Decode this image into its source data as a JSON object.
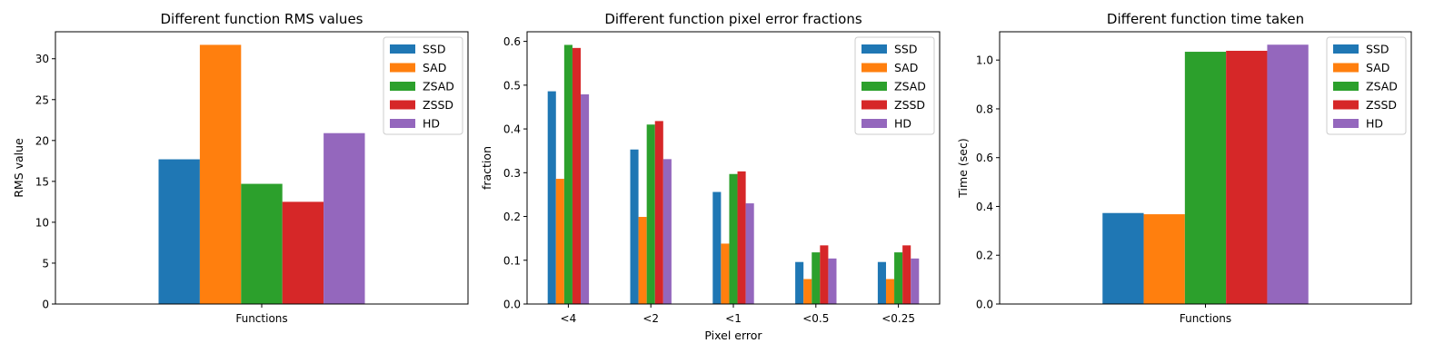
{
  "colors": {
    "SSD": "#1f77b4",
    "SAD": "#ff7f0e",
    "ZSAD": "#2ca02c",
    "ZSSD": "#d62728",
    "HD": "#9467bd"
  },
  "chart_data": [
    {
      "type": "bar",
      "title": "Different function RMS values",
      "xlabel": "",
      "ylabel": "RMS value",
      "categories": [
        "Functions"
      ],
      "series": [
        {
          "name": "SSD",
          "values": [
            17.7
          ]
        },
        {
          "name": "SAD",
          "values": [
            31.7
          ]
        },
        {
          "name": "ZSAD",
          "values": [
            14.7
          ]
        },
        {
          "name": "ZSSD",
          "values": [
            12.5
          ]
        },
        {
          "name": "HD",
          "values": [
            20.9
          ]
        }
      ],
      "ylim": [
        0,
        33.3
      ],
      "yticks": [
        0,
        5,
        10,
        15,
        20,
        25,
        30
      ],
      "legend": "top-right",
      "grid": false
    },
    {
      "type": "bar",
      "title": "Different function pixel error fractions",
      "xlabel": "Pixel error",
      "ylabel": "fraction",
      "categories": [
        "<4",
        "<2",
        "<1",
        "<0.5",
        "<0.25"
      ],
      "series": [
        {
          "name": "SSD",
          "values": [
            0.486,
            0.353,
            0.256,
            0.096,
            0.096
          ]
        },
        {
          "name": "SAD",
          "values": [
            0.286,
            0.199,
            0.138,
            0.057,
            0.057
          ]
        },
        {
          "name": "ZSAD",
          "values": [
            0.592,
            0.41,
            0.297,
            0.118,
            0.118
          ]
        },
        {
          "name": "ZSSD",
          "values": [
            0.585,
            0.418,
            0.303,
            0.134,
            0.134
          ]
        },
        {
          "name": "HD",
          "values": [
            0.479,
            0.331,
            0.23,
            0.104,
            0.104
          ]
        }
      ],
      "ylim": [
        0,
        0.622
      ],
      "yticks": [
        "0.0",
        "0.1",
        "0.2",
        "0.3",
        "0.4",
        "0.5",
        "0.6"
      ],
      "legend": "top-right",
      "grid": false
    },
    {
      "type": "bar",
      "title": "Different function time taken",
      "xlabel": "",
      "ylabel": "Time (sec)",
      "categories": [
        "Functions"
      ],
      "series": [
        {
          "name": "SSD",
          "values": [
            0.373
          ]
        },
        {
          "name": "SAD",
          "values": [
            0.368
          ]
        },
        {
          "name": "ZSAD",
          "values": [
            1.034
          ]
        },
        {
          "name": "ZSSD",
          "values": [
            1.038
          ]
        },
        {
          "name": "HD",
          "values": [
            1.063
          ]
        }
      ],
      "ylim": [
        0,
        1.116
      ],
      "yticks": [
        "0.0",
        "0.2",
        "0.4",
        "0.6",
        "0.8",
        "1.0"
      ],
      "legend": "top-right",
      "grid": false
    }
  ]
}
